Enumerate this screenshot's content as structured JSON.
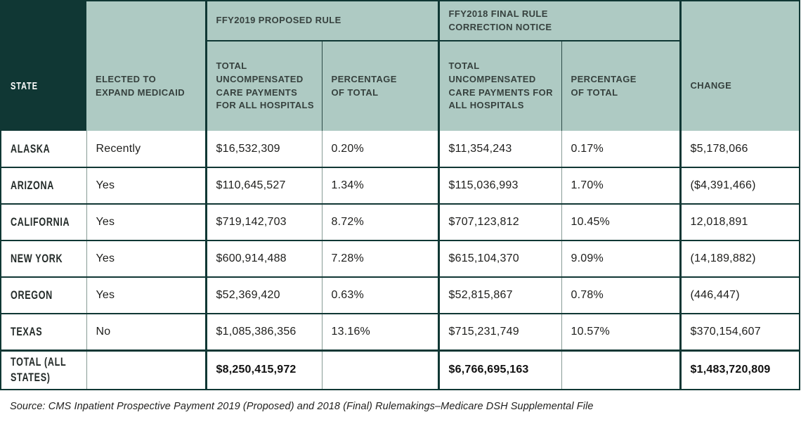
{
  "colors": {
    "header_dark_teal": "#103734",
    "header_sage": "#aecac3",
    "grid_dark": "#103734",
    "grid_light": "#879b95"
  },
  "table": {
    "headers": {
      "state": "STATE",
      "expand": "ELECTED TO EXPAND MEDICAID",
      "group_2019": "FFY2019 PROPOSED RULE",
      "group_2018": "FFY2018 FINAL RULE CORRECTION NOTICE",
      "uc_payments_2019": "TOTAL UNCOMPENSATED CARE PAYMENTS FOR ALL HOSPITALS",
      "pct_total_2019": "PERCENTAGE OF TOTAL",
      "uc_payments_2018": "TOTAL UNCOMPENSATED CARE PAYMENTS FOR ALL HOSPITALS",
      "pct_total_2018": "PERCENTAGE OF TOTAL",
      "change": "CHANGE"
    },
    "rows": [
      {
        "state": "ALASKA",
        "expand": "Recently",
        "uc_2019": "$16,532,309",
        "pct_2019": "0.20%",
        "uc_2018": "$11,354,243",
        "pct_2018": "0.17%",
        "change": "$5,178,066"
      },
      {
        "state": "ARIZONA",
        "expand": "Yes",
        "uc_2019": "$110,645,527",
        "pct_2019": "1.34%",
        "uc_2018": "$115,036,993",
        "pct_2018": "1.70%",
        "change": "($4,391,466)"
      },
      {
        "state": "CALIFORNIA",
        "expand": "Yes",
        "uc_2019": "$719,142,703",
        "pct_2019": "8.72%",
        "uc_2018": "$707,123,812",
        "pct_2018": "10.45%",
        "change": "12,018,891"
      },
      {
        "state": "NEW YORK",
        "expand": "Yes",
        "uc_2019": "$600,914,488",
        "pct_2019": "7.28%",
        "uc_2018": "$615,104,370",
        "pct_2018": "9.09%",
        "change": "(14,189,882)"
      },
      {
        "state": "OREGON",
        "expand": "Yes",
        "uc_2019": "$52,369,420",
        "pct_2019": "0.63%",
        "uc_2018": "$52,815,867",
        "pct_2018": "0.78%",
        "change": "(446,447)"
      },
      {
        "state": "TEXAS",
        "expand": "No",
        "uc_2019": "$1,085,386,356",
        "pct_2019": "13.16%",
        "uc_2018": "$715,231,749",
        "pct_2018": "10.57%",
        "change": "$370,154,607"
      }
    ],
    "total_row": {
      "state": "TOTAL (ALL STATES)",
      "expand": "",
      "uc_2019": "$8,250,415,972",
      "pct_2019": "",
      "uc_2018": "$6,766,695,163",
      "pct_2018": "",
      "change": "$1,483,720,809"
    },
    "source": "Source: CMS Inpatient Prospective Payment 2019 (Proposed) and 2018 (Final) Rulemakings–Medicare DSH Supplemental File"
  },
  "chart_data": {
    "type": "table",
    "title": "",
    "columns": [
      "State",
      "Elected to expand Medicaid",
      "FFY2019 Proposed Rule – Total uncompensated care payments for all hospitals",
      "FFY2019 Proposed Rule – Percentage of total",
      "FFY2018 Final Rule Correction Notice – Total uncompensated care payments for all hospitals",
      "FFY2018 Final Rule Correction Notice – Percentage of total",
      "Change"
    ],
    "rows": [
      [
        "Alaska",
        "Recently",
        16532309,
        "0.20%",
        11354243,
        "0.17%",
        5178066
      ],
      [
        "Arizona",
        "Yes",
        110645527,
        "1.34%",
        115036993,
        "1.70%",
        -4391466
      ],
      [
        "California",
        "Yes",
        719142703,
        "8.72%",
        707123812,
        "10.45%",
        12018891
      ],
      [
        "New York",
        "Yes",
        600914488,
        "7.28%",
        615104370,
        "9.09%",
        -14189882
      ],
      [
        "Oregon",
        "Yes",
        52369420,
        "0.63%",
        52815867,
        "0.78%",
        -446447
      ],
      [
        "Texas",
        "No",
        1085386356,
        "13.16%",
        715231749,
        "10.57%",
        370154607
      ],
      [
        "Total (all states)",
        "",
        8250415972,
        "",
        6766695163,
        "",
        1483720809
      ]
    ],
    "source": "Source: CMS Inpatient Prospective Payment 2019 (Proposed) and 2018 (Final) Rulemakings–Medicare DSH Supplemental File"
  }
}
